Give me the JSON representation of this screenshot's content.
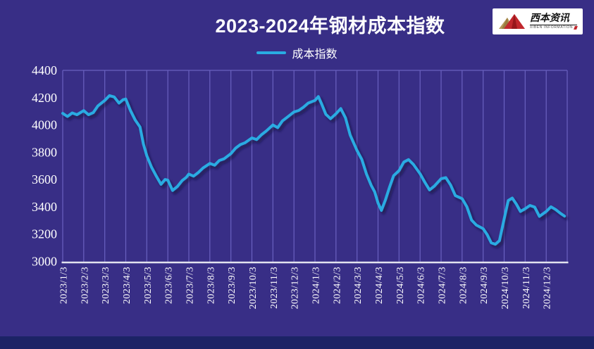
{
  "page": {
    "background_color": "#382E86",
    "bottom_strip_color": "#1C2366"
  },
  "header": {
    "title": "2023-2024年钢材成本指数"
  },
  "legend": {
    "label": "成本指数",
    "color": "#29ABE2"
  },
  "logo": {
    "name": "西本资讯",
    "subtext": "XIBEN INFORMATION",
    "mountain_colors": [
      "#B5985A",
      "#C1272D"
    ]
  },
  "chart_data": {
    "type": "line",
    "title": "2023-2024年钢材成本指数",
    "xlabel": "",
    "ylabel": "",
    "ylim": [
      3000,
      4400
    ],
    "y_ticks": [
      4400,
      4200,
      4000,
      3800,
      3600,
      3400,
      3200,
      3000
    ],
    "x_tick_labels": [
      "2023/1/3",
      "2023/2/3",
      "2023/3/3",
      "2023/4/3",
      "2023/5/3",
      "2023/6/3",
      "2023/7/3",
      "2023/8/3",
      "2023/9/3",
      "2023/10/3",
      "2023/11/3",
      "2023/12/3",
      "2024/1/3",
      "2024/2/3",
      "2024/3/3",
      "2024/4/3",
      "2024/5/3",
      "2024/6/3",
      "2024/7/3",
      "2024/8/3",
      "2024/9/3",
      "2024/10/3",
      "2024/11/3",
      "2024/12/3"
    ],
    "grid": "vertical-monthly-only",
    "legend_position": "top-center",
    "colors": {
      "grid": "#6A61C0",
      "axis": "#E2E2EE",
      "line": "#29ABE2",
      "line_shadow": "#0E0B38"
    },
    "series": [
      {
        "name": "成本指数",
        "color": "#29ABE2",
        "dates": [
          "2023/1/3",
          "2023/1/10",
          "2023/1/17",
          "2023/1/24",
          "2023/2/3",
          "2023/2/10",
          "2023/2/17",
          "2023/2/24",
          "2023/3/3",
          "2023/3/10",
          "2023/3/17",
          "2023/3/24",
          "2023/3/30",
          "2023/4/3",
          "2023/4/10",
          "2023/4/17",
          "2023/4/24",
          "2023/4/29",
          "2023/5/3",
          "2023/5/10",
          "2023/5/17",
          "2023/5/24",
          "2023/5/30",
          "2023/6/3",
          "2023/6/10",
          "2023/6/17",
          "2023/6/24",
          "2023/6/30",
          "2023/7/3",
          "2023/7/10",
          "2023/7/17",
          "2023/7/24",
          "2023/8/3",
          "2023/8/10",
          "2023/8/17",
          "2023/8/24",
          "2023/9/3",
          "2023/9/10",
          "2023/9/17",
          "2023/9/24",
          "2023/10/3",
          "2023/10/10",
          "2023/10/17",
          "2023/10/24",
          "2023/11/3",
          "2023/11/10",
          "2023/11/17",
          "2023/11/24",
          "2023/12/3",
          "2023/12/10",
          "2023/12/17",
          "2023/12/24",
          "2024/1/3",
          "2024/1/8",
          "2024/1/13",
          "2024/1/19",
          "2024/1/26",
          "2024/2/3",
          "2024/2/10",
          "2024/2/17",
          "2024/2/24",
          "2024/3/3",
          "2024/3/10",
          "2024/3/17",
          "2024/3/24",
          "2024/3/29",
          "2024/4/3",
          "2024/4/8",
          "2024/4/14",
          "2024/4/20",
          "2024/4/26",
          "2024/5/3",
          "2024/5/10",
          "2024/5/17",
          "2024/5/24",
          "2024/6/3",
          "2024/6/10",
          "2024/6/17",
          "2024/6/24",
          "2024/7/3",
          "2024/7/10",
          "2024/7/17",
          "2024/7/24",
          "2024/8/3",
          "2024/8/10",
          "2024/8/17",
          "2024/8/24",
          "2024/9/3",
          "2024/9/9",
          "2024/9/15",
          "2024/9/21",
          "2024/9/27",
          "2024/10/3",
          "2024/10/9",
          "2024/10/15",
          "2024/10/21",
          "2024/10/27",
          "2024/11/3",
          "2024/11/10",
          "2024/11/17",
          "2024/11/24",
          "2024/12/3",
          "2024/12/10",
          "2024/12/17",
          "2024/12/24",
          "2024/12/30"
        ],
        "values": [
          4085,
          4062,
          4088,
          4075,
          4105,
          4075,
          4090,
          4140,
          4180,
          4215,
          4205,
          4160,
          4185,
          4190,
          4105,
          4035,
          3985,
          3860,
          3775,
          3690,
          3625,
          3565,
          3600,
          3595,
          3520,
          3548,
          3592,
          3615,
          3640,
          3625,
          3652,
          3685,
          3718,
          3705,
          3740,
          3752,
          3790,
          3830,
          3856,
          3870,
          3905,
          3893,
          3928,
          3955,
          4000,
          3980,
          4030,
          4056,
          4095,
          4106,
          4130,
          4160,
          4180,
          4208,
          4152,
          4078,
          4046,
          4082,
          4120,
          4052,
          3925,
          3812,
          3748,
          3640,
          3556,
          3510,
          3428,
          3374,
          3452,
          3545,
          3628,
          3665,
          3728,
          3746,
          3712,
          3642,
          3580,
          3524,
          3552,
          3606,
          3614,
          3560,
          3482,
          3460,
          3400,
          3302,
          3266,
          3240,
          3196,
          3136,
          3126,
          3152,
          3312,
          3446,
          3464,
          3420,
          3366,
          3386,
          3410,
          3398,
          3330,
          3366,
          3400,
          3380,
          3352,
          3332
        ]
      }
    ]
  }
}
